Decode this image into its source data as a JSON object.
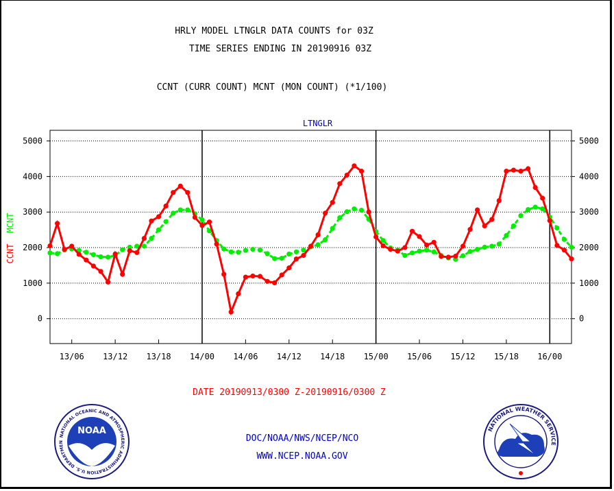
{
  "header": {
    "title_line1": "HRLY MODEL LTNGLR DATA COUNTS for 03Z",
    "title_line2": "TIME SERIES ENDING IN 20190916 03Z",
    "subtitle": "CCNT (CURR COUNT) MCNT (MON COUNT) (*1/100)"
  },
  "footer": {
    "date_range": "DATE 20190913/0300 Z-20190916/0300 Z",
    "org_line": "DOC/NOAA/NWS/NCEP/NCO",
    "url": "WWW.NCEP.NOAA.GOV"
  },
  "logos": {
    "noaa_text": "NOAA",
    "noaa_ring_text": "NATIONAL OCEANIC AND ATMOSPHERIC ADMINISTRATION U.S. DEPARTMENT OF COMMERCE",
    "nws_ring_text": "NATIONAL WEATHER SERVICE"
  },
  "colors": {
    "ccnt": "#ff0000",
    "mcnt": "#00ee00",
    "plot_title": "#0000cc",
    "footer_text": "#0000cc",
    "date_text": "#ff0000"
  },
  "chart_data": {
    "type": "line",
    "title": "LTNGLR",
    "ylabel_ccnt": "CCNT",
    "ylabel_mcnt": "MCNT",
    "ylim": [
      -700,
      5300
    ],
    "yticks": [
      0,
      1000,
      2000,
      3000,
      4000,
      5000
    ],
    "ytick_labels": [
      "0",
      "1000",
      "2000",
      "3000",
      "4000",
      "5000"
    ],
    "xticks": [
      "13/06",
      "13/12",
      "13/18",
      "14/00",
      "14/06",
      "14/12",
      "14/18",
      "15/00",
      "15/06",
      "15/12",
      "15/18",
      "16/00"
    ],
    "x_start": "13/03",
    "x_end": "16/03",
    "day_boundaries": [
      "14/00",
      "15/00",
      "16/00"
    ],
    "grid": "dotted horizontal",
    "x_hours": [
      3,
      4,
      5,
      6,
      7,
      8,
      9,
      10,
      11,
      12,
      13,
      14,
      15,
      16,
      17,
      18,
      19,
      20,
      21,
      22,
      23,
      24,
      25,
      26,
      27,
      28,
      29,
      30,
      31,
      32,
      33,
      34,
      35,
      36,
      37,
      38,
      39,
      40,
      41,
      42,
      43,
      44,
      45,
      46,
      47,
      48,
      49,
      50,
      51,
      52,
      53,
      54,
      55,
      56,
      57,
      58,
      59,
      60,
      61,
      62,
      63,
      64,
      65,
      66,
      67,
      68,
      69,
      70,
      71,
      72,
      73,
      74,
      75
    ],
    "series": [
      {
        "name": "CCNT",
        "values": [
          2050,
          2680,
          1950,
          2040,
          1810,
          1650,
          1480,
          1330,
          1030,
          1820,
          1250,
          1910,
          1860,
          2260,
          2750,
          2870,
          3170,
          3550,
          3730,
          3550,
          2850,
          2620,
          2720,
          2100,
          1250,
          190,
          700,
          1170,
          1200,
          1190,
          1050,
          1010,
          1230,
          1430,
          1680,
          1780,
          2040,
          2360,
          2970,
          3270,
          3800,
          4040,
          4300,
          4150,
          3000,
          2300,
          2050,
          1950,
          1900,
          2000,
          2460,
          2310,
          2070,
          2150,
          1750,
          1730,
          1760,
          2040,
          2510,
          3060,
          2610,
          2790,
          3320,
          4150,
          4180,
          4150,
          4220,
          3690,
          3390,
          2760,
          2060,
          1930,
          1680
        ]
      },
      {
        "name": "MCNT",
        "values": [
          1850,
          1830,
          1930,
          1960,
          1920,
          1870,
          1800,
          1740,
          1730,
          1780,
          1940,
          2010,
          2040,
          2040,
          2260,
          2500,
          2730,
          2970,
          3060,
          3060,
          2950,
          2780,
          2470,
          2200,
          1960,
          1880,
          1870,
          1920,
          1950,
          1930,
          1830,
          1690,
          1700,
          1820,
          1880,
          1930,
          2020,
          2080,
          2220,
          2540,
          2840,
          3010,
          3090,
          3050,
          2800,
          2450,
          2200,
          1990,
          1930,
          1780,
          1850,
          1900,
          1930,
          1880,
          1780,
          1710,
          1670,
          1770,
          1890,
          1950,
          2010,
          2040,
          2100,
          2340,
          2610,
          2900,
          3070,
          3140,
          3090,
          2860,
          2550,
          2230,
          2010
        ]
      }
    ]
  }
}
